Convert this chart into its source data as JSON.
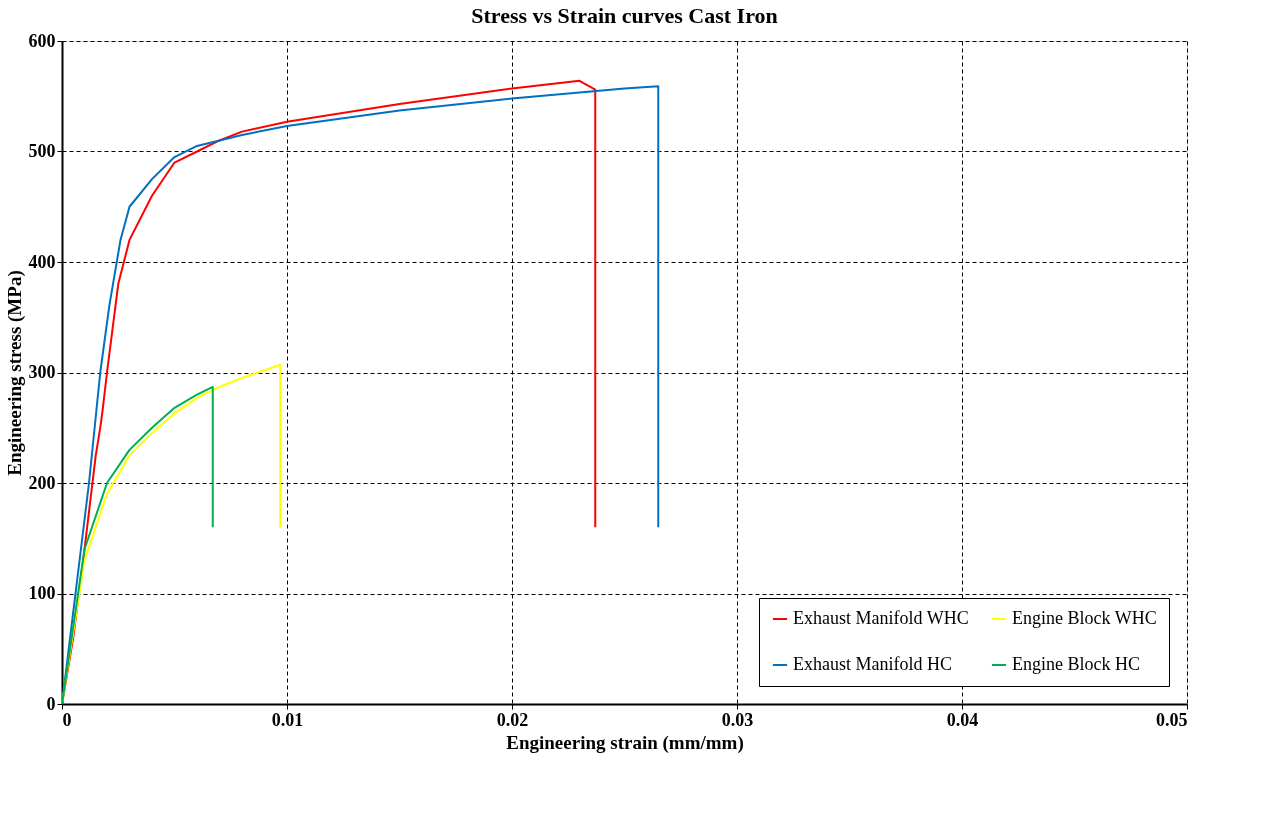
{
  "chart_data": {
    "type": "line",
    "title": "Stress vs Strain curves Cast Iron",
    "xlabel": "Engineering strain (mm/mm)",
    "ylabel": "Engineering stress (MPa)",
    "xlim": [
      0,
      0.05
    ],
    "xticks": [
      0,
      0.01,
      0.02,
      0.03,
      0.04,
      0.05
    ],
    "ylim": [
      0,
      600
    ],
    "yticks": [
      0,
      100,
      200,
      300,
      400,
      500,
      600
    ],
    "grid": true,
    "legend": "bottom right",
    "marker": "none",
    "line_style": "solid",
    "series": [
      {
        "name": "Exhaust Manifold WHC",
        "color": "#ff0000",
        "x": [
          0,
          0.0005,
          0.001,
          0.0015,
          0.0017,
          0.0018,
          0.002,
          0.0025,
          0.003,
          0.004,
          0.005,
          0.006,
          0.007,
          0.008,
          0.01,
          0.015,
          0.02,
          0.023,
          0.0237,
          0.0237
        ],
        "values": [
          0,
          60,
          140,
          225,
          250,
          265,
          300,
          380,
          420,
          460,
          490,
          500,
          510,
          518,
          527,
          543,
          557,
          564,
          556,
          160
        ]
      },
      {
        "name": "Exhaust Manifold HC",
        "color": "#0070c0",
        "x": [
          0,
          0.0006,
          0.0012,
          0.0017,
          0.0021,
          0.0026,
          0.003,
          0.004,
          0.005,
          0.006,
          0.008,
          0.01,
          0.015,
          0.02,
          0.025,
          0.0265,
          0.0265
        ],
        "values": [
          0,
          100,
          200,
          300,
          360,
          420,
          450,
          475,
          495,
          505,
          515,
          523,
          537,
          548,
          557,
          559,
          160
        ]
      },
      {
        "name": "Engine Block WHC",
        "color": "#ffff00",
        "x": [
          0,
          0.001,
          0.002,
          0.003,
          0.004,
          0.005,
          0.006,
          0.007,
          0.008,
          0.0097,
          0.0097
        ],
        "values": [
          0,
          130,
          190,
          225,
          245,
          263,
          277,
          287,
          295,
          307,
          160
        ]
      },
      {
        "name": "Engine Block HC",
        "color": "#00b050",
        "x": [
          0,
          0.001,
          0.002,
          0.003,
          0.004,
          0.005,
          0.006,
          0.0067,
          0.0067
        ],
        "values": [
          0,
          140,
          200,
          230,
          250,
          268,
          280,
          287,
          160
        ]
      }
    ]
  }
}
